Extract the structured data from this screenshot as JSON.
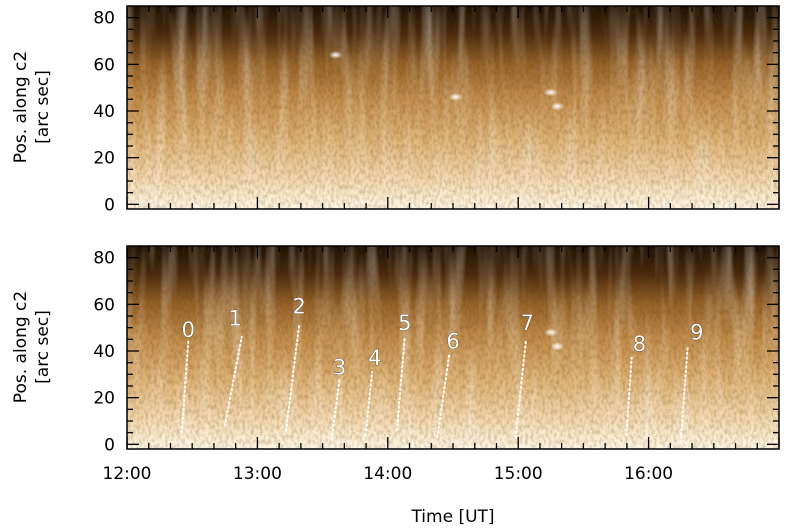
{
  "chart_data": [
    {
      "type": "heatmap",
      "panel": "top",
      "ylabel_line1": "Pos. along c2",
      "ylabel_line2": "[arc sec]",
      "xlabel": "",
      "xlim": [
        12.0,
        17.0
      ],
      "ylim": [
        -2,
        85
      ],
      "yticks": [
        0,
        20,
        40,
        60,
        80
      ],
      "ytick_labels": [
        "0",
        "20",
        "40",
        "60",
        "80"
      ],
      "xticks": [
        12,
        13,
        14,
        15,
        16
      ],
      "colors": {
        "bright": "#fff4e0",
        "mid": "#c8924e",
        "dark": "#241405"
      },
      "bright_spots": [
        {
          "t": 14.52,
          "pos": 46
        },
        {
          "t": 15.3,
          "pos": 42
        },
        {
          "t": 15.25,
          "pos": 48
        },
        {
          "t": 13.6,
          "pos": 64
        }
      ]
    },
    {
      "type": "heatmap",
      "panel": "bottom",
      "ylabel_line1": "Pos. along c2",
      "ylabel_line2": "[arc sec]",
      "xlabel": "Time [UT]",
      "xlim": [
        12.0,
        17.0
      ],
      "ylim": [
        -2,
        85
      ],
      "yticks": [
        0,
        20,
        40,
        60,
        80
      ],
      "ytick_labels": [
        "0",
        "20",
        "40",
        "60",
        "80"
      ],
      "xticks": [
        12,
        13,
        14,
        15,
        16
      ],
      "xtick_labels": [
        "12:00",
        "13:00",
        "14:00",
        "15:00",
        "16:00"
      ],
      "colors": {
        "bright": "#fff4e0",
        "mid": "#c8924e",
        "dark": "#241405"
      },
      "bright_spots": [
        {
          "t": 15.3,
          "pos": 42
        },
        {
          "t": 15.25,
          "pos": 48
        }
      ],
      "annotations": [
        {
          "label": "0",
          "t_low": 12.42,
          "pos_low": 5,
          "t_high": 12.47,
          "pos_high": 44,
          "label_t": 12.47,
          "label_pos": 46
        },
        {
          "label": "1",
          "t_low": 12.75,
          "pos_low": 8,
          "t_high": 12.88,
          "pos_high": 46,
          "label_t": 12.83,
          "label_pos": 51
        },
        {
          "label": "2",
          "t_low": 13.22,
          "pos_low": 6,
          "t_high": 13.32,
          "pos_high": 51,
          "label_t": 13.32,
          "label_pos": 56
        },
        {
          "label": "3",
          "t_low": 13.57,
          "pos_low": 2,
          "t_high": 13.63,
          "pos_high": 28,
          "label_t": 13.63,
          "label_pos": 30
        },
        {
          "label": "4",
          "t_low": 13.83,
          "pos_low": 4,
          "t_high": 13.88,
          "pos_high": 31,
          "label_t": 13.9,
          "label_pos": 34
        },
        {
          "label": "5",
          "t_low": 14.07,
          "pos_low": 6,
          "t_high": 14.13,
          "pos_high": 46,
          "label_t": 14.13,
          "label_pos": 49
        },
        {
          "label": "6",
          "t_low": 14.38,
          "pos_low": 3,
          "t_high": 14.47,
          "pos_high": 38,
          "label_t": 14.5,
          "label_pos": 41
        },
        {
          "label": "7",
          "t_low": 14.98,
          "pos_low": 3,
          "t_high": 15.06,
          "pos_high": 45,
          "label_t": 15.07,
          "label_pos": 49
        },
        {
          "label": "8",
          "t_low": 15.83,
          "pos_low": 4,
          "t_high": 15.87,
          "pos_high": 37,
          "label_t": 15.93,
          "label_pos": 40
        },
        {
          "label": "9",
          "t_low": 16.25,
          "pos_low": 4,
          "t_high": 16.3,
          "pos_high": 42,
          "label_t": 16.37,
          "label_pos": 45
        }
      ]
    }
  ]
}
